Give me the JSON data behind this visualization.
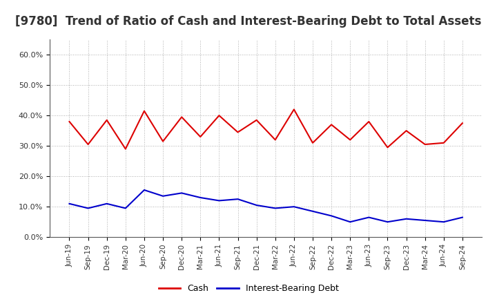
{
  "title": "[9780]  Trend of Ratio of Cash and Interest-Bearing Debt to Total Assets",
  "x_labels": [
    "Jun-19",
    "Sep-19",
    "Dec-19",
    "Mar-20",
    "Jun-20",
    "Sep-20",
    "Dec-20",
    "Mar-21",
    "Jun-21",
    "Sep-21",
    "Dec-21",
    "Mar-22",
    "Jun-22",
    "Sep-22",
    "Dec-22",
    "Mar-23",
    "Jun-23",
    "Sep-23",
    "Dec-23",
    "Mar-24",
    "Jun-24",
    "Sep-24"
  ],
  "cash": [
    38.0,
    30.5,
    38.5,
    29.0,
    41.5,
    31.5,
    39.5,
    33.0,
    40.0,
    34.5,
    38.5,
    32.0,
    42.0,
    31.0,
    37.0,
    32.0,
    38.0,
    29.5,
    35.0,
    30.5,
    31.0,
    37.5
  ],
  "debt": [
    11.0,
    9.5,
    11.0,
    9.5,
    15.5,
    13.5,
    14.5,
    13.0,
    12.0,
    12.5,
    10.5,
    9.5,
    10.0,
    8.5,
    7.0,
    5.0,
    6.5,
    5.0,
    6.0,
    5.5,
    5.0,
    6.5
  ],
  "cash_color": "#dd0000",
  "debt_color": "#0000cc",
  "ylim": [
    0,
    65
  ],
  "yticks": [
    0,
    10,
    20,
    30,
    40,
    50,
    60
  ],
  "ytick_labels": [
    "0.0%",
    "10.0%",
    "20.0%",
    "30.0%",
    "40.0%",
    "50.0%",
    "60.0%"
  ],
  "legend_cash": "Cash",
  "legend_debt": "Interest-Bearing Debt",
  "title_fontsize": 12,
  "axis_label_fontsize": 7.5,
  "legend_fontsize": 9,
  "title_color": "#333333",
  "background_color": "#ffffff",
  "grid_color": "#999999"
}
